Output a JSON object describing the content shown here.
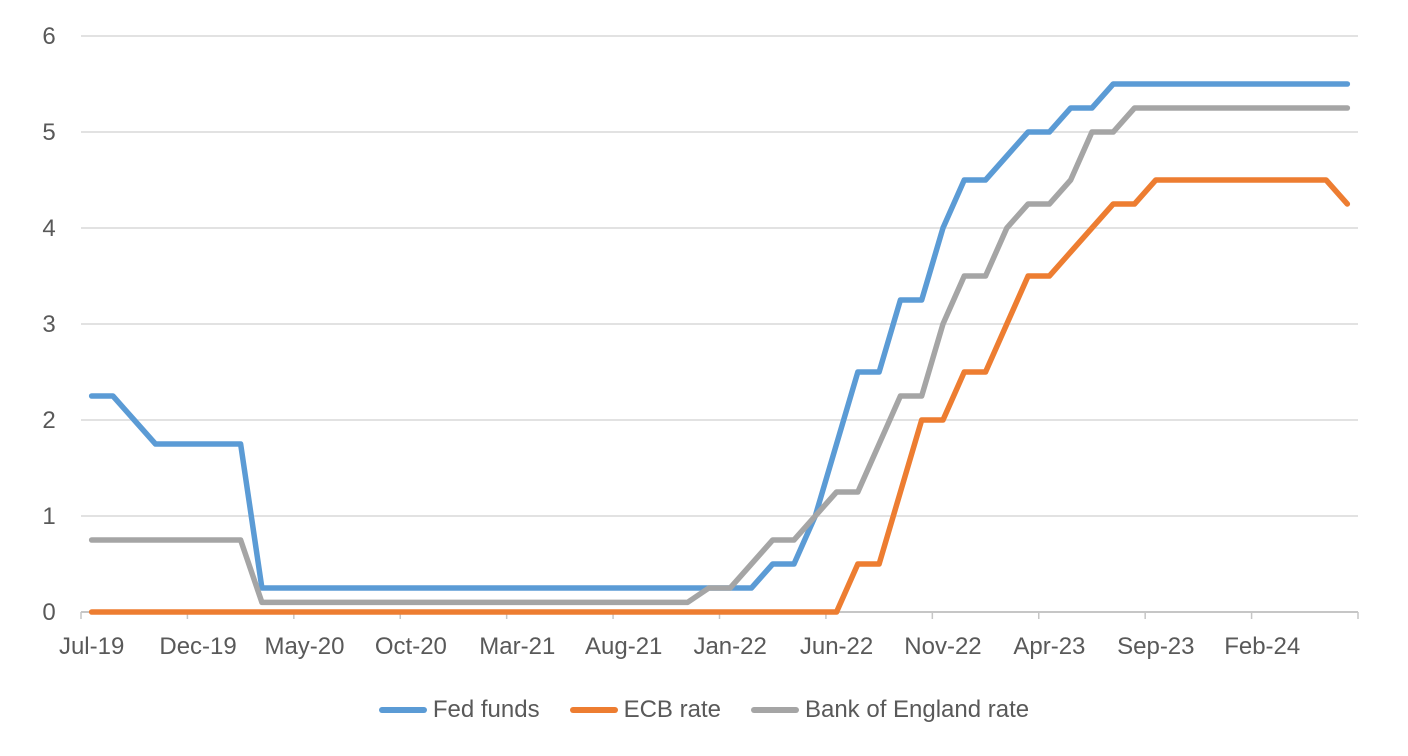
{
  "colors": {
    "background": "#FFFFFF",
    "gridline": "#D9D9D9",
    "axis_line": "#C6C6C6",
    "tick_text": "#595959",
    "legend_text": "#595959",
    "fed_blue": "#5B9BD5",
    "ecb_orange": "#ED7D31",
    "boe_gray": "#A5A5A5"
  },
  "chart_data": {
    "type": "line",
    "title": "",
    "xlabel": "",
    "ylabel": "",
    "ylim": [
      0,
      6
    ],
    "yticks": [
      0,
      1,
      2,
      3,
      4,
      5,
      6
    ],
    "grid": true,
    "legend_position": "bottom",
    "xtick_every": 5,
    "xtick_labels": [
      "Jul-19",
      "Dec-19",
      "May-20",
      "Oct-20",
      "Mar-21",
      "Aug-21",
      "Jan-22",
      "Jun-22",
      "Nov-22",
      "Apr-23",
      "Sep-23",
      "Feb-24"
    ],
    "categories": [
      "Jul-19",
      "Aug-19",
      "Sep-19",
      "Oct-19",
      "Nov-19",
      "Dec-19",
      "Jan-20",
      "Feb-20",
      "Mar-20",
      "Apr-20",
      "May-20",
      "Jun-20",
      "Jul-20",
      "Aug-20",
      "Sep-20",
      "Oct-20",
      "Nov-20",
      "Dec-20",
      "Jan-21",
      "Feb-21",
      "Mar-21",
      "Apr-21",
      "May-21",
      "Jun-21",
      "Jul-21",
      "Aug-21",
      "Sep-21",
      "Oct-21",
      "Nov-21",
      "Dec-21",
      "Jan-22",
      "Feb-22",
      "Mar-22",
      "Apr-22",
      "May-22",
      "Jun-22",
      "Jul-22",
      "Aug-22",
      "Sep-22",
      "Oct-22",
      "Nov-22",
      "Dec-22",
      "Jan-23",
      "Feb-23",
      "Mar-23",
      "Apr-23",
      "May-23",
      "Jun-23",
      "Jul-23",
      "Aug-23",
      "Sep-23",
      "Oct-23",
      "Nov-23",
      "Dec-23",
      "Jan-24",
      "Feb-24",
      "Mar-24",
      "Apr-24",
      "May-24",
      "Jun-24"
    ],
    "series": [
      {
        "name": "Fed funds",
        "color": "#5B9BD5",
        "values": [
          2.25,
          2.25,
          2.0,
          1.75,
          1.75,
          1.75,
          1.75,
          1.75,
          0.25,
          0.25,
          0.25,
          0.25,
          0.25,
          0.25,
          0.25,
          0.25,
          0.25,
          0.25,
          0.25,
          0.25,
          0.25,
          0.25,
          0.25,
          0.25,
          0.25,
          0.25,
          0.25,
          0.25,
          0.25,
          0.25,
          0.25,
          0.25,
          0.5,
          0.5,
          1.0,
          1.75,
          2.5,
          2.5,
          3.25,
          3.25,
          4.0,
          4.5,
          4.5,
          4.75,
          5.0,
          5.0,
          5.25,
          5.25,
          5.5,
          5.5,
          5.5,
          5.5,
          5.5,
          5.5,
          5.5,
          5.5,
          5.5,
          5.5,
          5.5,
          5.5
        ]
      },
      {
        "name": "ECB rate",
        "color": "#ED7D31",
        "values": [
          0,
          0,
          0,
          0,
          0,
          0,
          0,
          0,
          0,
          0,
          0,
          0,
          0,
          0,
          0,
          0,
          0,
          0,
          0,
          0,
          0,
          0,
          0,
          0,
          0,
          0,
          0,
          0,
          0,
          0,
          0,
          0,
          0,
          0,
          0,
          0,
          0.5,
          0.5,
          1.25,
          2.0,
          2.0,
          2.5,
          2.5,
          3.0,
          3.5,
          3.5,
          3.75,
          4.0,
          4.25,
          4.25,
          4.5,
          4.5,
          4.5,
          4.5,
          4.5,
          4.5,
          4.5,
          4.5,
          4.5,
          4.25
        ]
      },
      {
        "name": "Bank of England rate",
        "color": "#A5A5A5",
        "values": [
          0.75,
          0.75,
          0.75,
          0.75,
          0.75,
          0.75,
          0.75,
          0.75,
          0.1,
          0.1,
          0.1,
          0.1,
          0.1,
          0.1,
          0.1,
          0.1,
          0.1,
          0.1,
          0.1,
          0.1,
          0.1,
          0.1,
          0.1,
          0.1,
          0.1,
          0.1,
          0.1,
          0.1,
          0.1,
          0.25,
          0.25,
          0.5,
          0.75,
          0.75,
          1.0,
          1.25,
          1.25,
          1.75,
          2.25,
          2.25,
          3.0,
          3.5,
          3.5,
          4.0,
          4.25,
          4.25,
          4.5,
          5.0,
          5.0,
          5.25,
          5.25,
          5.25,
          5.25,
          5.25,
          5.25,
          5.25,
          5.25,
          5.25,
          5.25,
          5.25
        ]
      }
    ]
  }
}
